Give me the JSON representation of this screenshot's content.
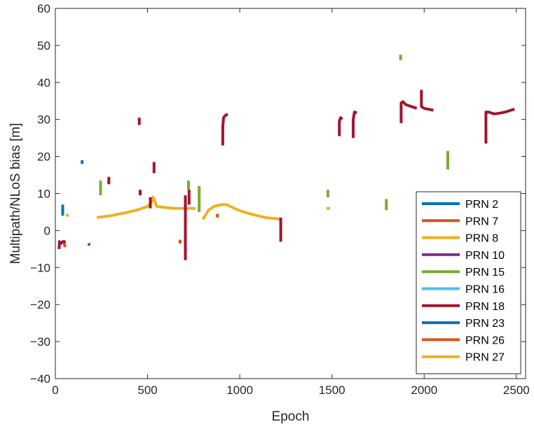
{
  "chart_data": {
    "type": "line",
    "xlabel": "Epoch",
    "ylabel": "Multipath/NLoS bias [m]",
    "xlim": [
      0,
      2550
    ],
    "ylim": [
      -40,
      60
    ],
    "xticks": [
      0,
      500,
      1000,
      1500,
      2000,
      2500
    ],
    "yticks": [
      -40,
      -30,
      -20,
      -10,
      0,
      10,
      20,
      30,
      40,
      50,
      60
    ],
    "grid": false,
    "legend_position": "bottom-right",
    "series": [
      {
        "name": "PRN 2",
        "color": "#0072BD",
        "segments": [
          [
            [
              40,
              7
            ],
            [
              40,
              4
            ]
          ],
          [
            [
              145,
              19
            ],
            [
              145,
              18
            ]
          ]
        ]
      },
      {
        "name": "PRN 7",
        "color": "#D95319",
        "segments": [
          [
            [
              48,
              -3
            ],
            [
              52,
              -4.5
            ]
          ],
          [
            [
              675,
              -2.5
            ],
            [
              678,
              -3.5
            ]
          ],
          [
            [
              878,
              4.5
            ],
            [
              880,
              3.5
            ]
          ]
        ]
      },
      {
        "name": "PRN 8",
        "color": "#EDB120",
        "segments": [
          [
            [
              60,
              4.5
            ],
            [
              70,
              3.8
            ]
          ],
          [
            [
              225,
              3.5
            ],
            [
              300,
              4
            ],
            [
              380,
              4.8
            ],
            [
              440,
              5.5
            ],
            [
              470,
              6
            ],
            [
              500,
              6.5
            ],
            [
              520,
              7.5
            ],
            [
              530,
              9
            ],
            [
              550,
              6.5
            ],
            [
              600,
              6.2
            ],
            [
              650,
              6
            ],
            [
              700,
              6
            ],
            [
              760,
              6
            ]
          ],
          [
            [
              800,
              3
            ],
            [
              830,
              5.5
            ],
            [
              860,
              6.5
            ],
            [
              900,
              7
            ],
            [
              930,
              7
            ],
            [
              970,
              6
            ],
            [
              1020,
              5
            ],
            [
              1080,
              4.2
            ],
            [
              1140,
              3.5
            ],
            [
              1200,
              3.2
            ],
            [
              1220,
              3
            ]
          ],
          [
            [
              1470,
              6
            ],
            [
              1490,
              6
            ]
          ]
        ]
      },
      {
        "name": "PRN 10",
        "color": "#7E2F8E",
        "segments": []
      },
      {
        "name": "PRN 15",
        "color": "#77AC30",
        "segments": [
          [
            [
              245,
              13.5
            ],
            [
              245,
              9.5
            ]
          ],
          [
            [
              722,
              13.5
            ],
            [
              722,
              11
            ]
          ],
          [
            [
              780,
              12
            ],
            [
              780,
              5
            ]
          ],
          [
            [
              1478,
              11
            ],
            [
              1478,
              9
            ]
          ],
          [
            [
              1795,
              8.5
            ],
            [
              1795,
              5.5
            ]
          ],
          [
            [
              1872,
              47.5
            ],
            [
              1872,
              46
            ]
          ],
          [
            [
              2128,
              21.5
            ],
            [
              2128,
              16.5
            ]
          ]
        ]
      },
      {
        "name": "PRN 16",
        "color": "#4DBEEE",
        "segments": []
      },
      {
        "name": "PRN 18",
        "color": "#A2142F",
        "segments": [
          [
            [
              20,
              -5
            ],
            [
              22,
              -3
            ],
            [
              30,
              -3.5
            ],
            [
              40,
              -3
            ],
            [
              55,
              -3
            ]
          ],
          [
            [
              180,
              -3.5
            ],
            [
              185,
              -4
            ]
          ],
          [
            [
              290,
              14.5
            ],
            [
              290,
              12.5
            ]
          ],
          [
            [
              455,
              30.5
            ],
            [
              455,
              28.5
            ]
          ],
          [
            [
              460,
              11
            ],
            [
              460,
              9.5
            ]
          ],
          [
            [
              515,
              9
            ],
            [
              515,
              6
            ]
          ],
          [
            [
              535,
              18.5
            ],
            [
              535,
              15.5
            ]
          ],
          [
            [
              705,
              9.5
            ],
            [
              705,
              -8
            ]
          ],
          [
            [
              725,
              11
            ],
            [
              725,
              7
            ]
          ],
          [
            [
              908,
              23
            ],
            [
              908,
              28
            ],
            [
              912,
              30.5
            ],
            [
              920,
              31
            ],
            [
              935,
              31.5
            ]
          ],
          [
            [
              1222,
              3.5
            ],
            [
              1222,
              -3
            ]
          ],
          [
            [
              1540,
              25.5
            ],
            [
              1540,
              29.5
            ],
            [
              1547,
              30.5
            ],
            [
              1555,
              30
            ]
          ],
          [
            [
              1615,
              25
            ],
            [
              1615,
              30
            ],
            [
              1622,
              32
            ],
            [
              1635,
              31.8
            ]
          ],
          [
            [
              1875,
              29
            ],
            [
              1875,
              34.5
            ],
            [
              1885,
              34.8
            ],
            [
              1900,
              34
            ],
            [
              1930,
              33.5
            ],
            [
              1960,
              33
            ]
          ],
          [
            [
              1985,
              38
            ],
            [
              1985,
              33.5
            ],
            [
              2000,
              33
            ],
            [
              2020,
              32.8
            ],
            [
              2050,
              32.5
            ]
          ],
          [
            [
              2335,
              23.5
            ],
            [
              2335,
              32
            ],
            [
              2350,
              32
            ],
            [
              2380,
              31.5
            ],
            [
              2410,
              31.7
            ],
            [
              2440,
              32
            ],
            [
              2470,
              32.5
            ],
            [
              2490,
              32.8
            ]
          ]
        ]
      },
      {
        "name": "PRN 23",
        "color": "#0072BD",
        "segments": []
      },
      {
        "name": "PRN 26",
        "color": "#D95319",
        "segments": []
      },
      {
        "name": "PRN 27",
        "color": "#EDB120",
        "segments": []
      }
    ]
  }
}
